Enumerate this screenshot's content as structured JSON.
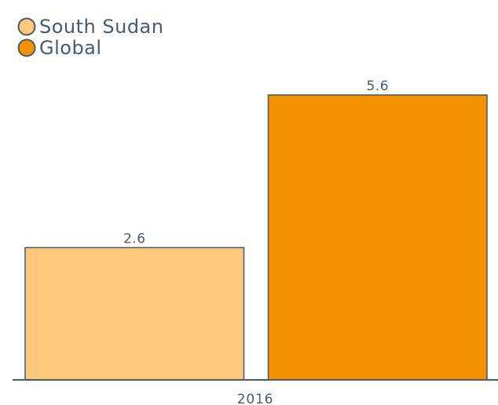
{
  "chart_data": {
    "type": "bar",
    "categories": [
      "2016"
    ],
    "series": [
      {
        "name": "South Sudan",
        "color": "#fdc77c",
        "values": [
          2.6
        ]
      },
      {
        "name": "Global",
        "color": "#f39200",
        "values": [
          5.6
        ]
      }
    ],
    "ylim": [
      0,
      5.6
    ],
    "legend": "top-left"
  }
}
